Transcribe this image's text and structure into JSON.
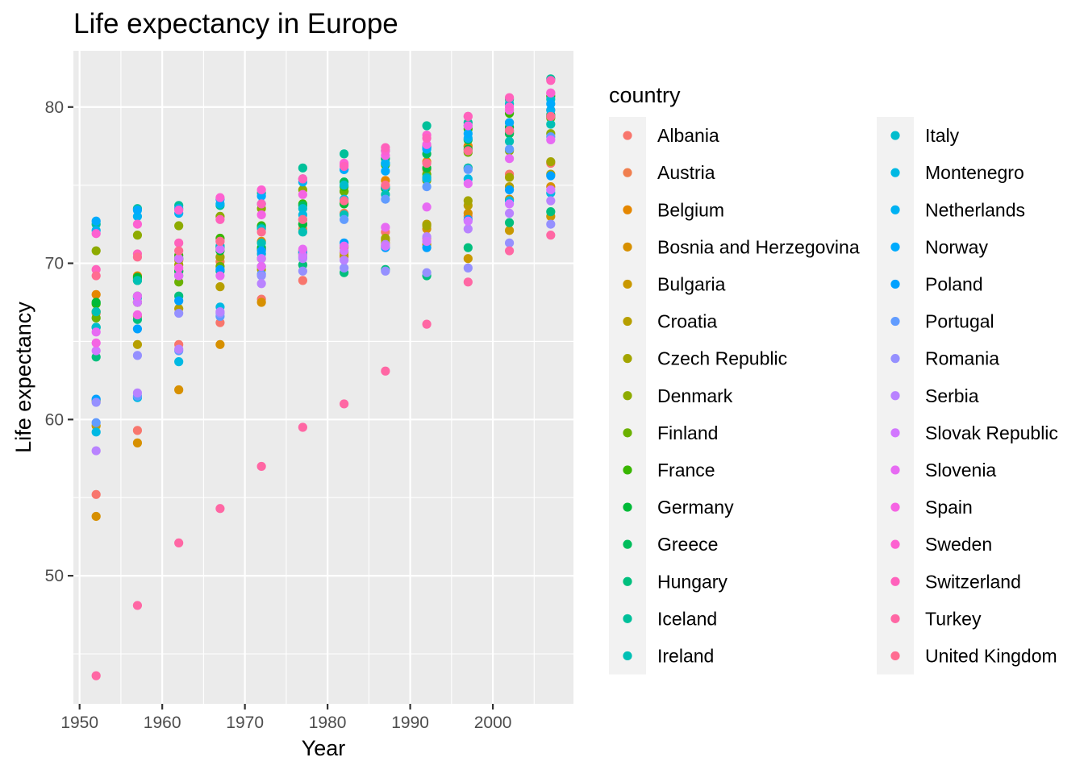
{
  "chart_data": {
    "type": "scatter",
    "title": "Life expectancy in Europe",
    "xlabel": "Year",
    "ylabel": "Life expectancy",
    "xlim": [
      1949.25,
      2009.75
    ],
    "ylim": [
      41.8,
      83.6
    ],
    "x_ticks": [
      1950,
      1960,
      1970,
      1980,
      1990,
      2000
    ],
    "y_ticks": [
      50,
      60,
      70,
      80
    ],
    "grid": true,
    "legend_title": "country",
    "legend_position": "right",
    "x": [
      1952,
      1957,
      1962,
      1967,
      1972,
      1977,
      1982,
      1987,
      1992,
      1997,
      2002,
      2007
    ],
    "series": [
      {
        "name": "Albania",
        "color": "#F8766D",
        "values": [
          55.2,
          59.3,
          64.8,
          66.2,
          67.7,
          68.9,
          70.4,
          72.0,
          71.6,
          73.0,
          75.7,
          76.4
        ]
      },
      {
        "name": "Austria",
        "color": "#F07F4F",
        "values": [
          66.8,
          67.5,
          69.5,
          70.1,
          70.6,
          72.2,
          73.2,
          74.9,
          76.0,
          77.5,
          79.0,
          79.8
        ]
      },
      {
        "name": "Belgium",
        "color": "#E58700",
        "values": [
          68.0,
          69.2,
          70.2,
          70.9,
          71.4,
          72.8,
          73.9,
          75.3,
          76.5,
          77.5,
          78.3,
          79.4
        ]
      },
      {
        "name": "Bosnia and Herzegovina",
        "color": "#D79000",
        "values": [
          53.8,
          58.5,
          61.9,
          64.8,
          67.5,
          69.9,
          70.7,
          71.1,
          72.2,
          73.2,
          74.1,
          74.9
        ]
      },
      {
        "name": "Bulgaria",
        "color": "#C99800",
        "values": [
          59.6,
          66.6,
          69.5,
          70.4,
          70.9,
          70.8,
          71.1,
          71.3,
          71.2,
          70.3,
          72.1,
          73.0
        ]
      },
      {
        "name": "Croatia",
        "color": "#B79F00",
        "values": [
          61.2,
          64.8,
          67.1,
          68.5,
          69.6,
          70.6,
          70.5,
          71.5,
          72.5,
          73.7,
          74.9,
          75.7
        ]
      },
      {
        "name": "Czech Republic",
        "color": "#A3A500",
        "values": [
          66.9,
          69.0,
          69.9,
          70.4,
          70.3,
          70.7,
          71.0,
          71.6,
          72.4,
          74.0,
          75.5,
          76.5
        ]
      },
      {
        "name": "Denmark",
        "color": "#8EAB00",
        "values": [
          70.8,
          71.8,
          72.4,
          73.0,
          73.5,
          74.7,
          74.6,
          74.8,
          75.3,
          76.1,
          77.2,
          78.3
        ]
      },
      {
        "name": "Finland",
        "color": "#6BB100",
        "values": [
          66.5,
          67.5,
          68.8,
          69.8,
          70.9,
          72.5,
          74.6,
          74.8,
          75.7,
          77.1,
          78.4,
          79.3
        ]
      },
      {
        "name": "France",
        "color": "#39B600",
        "values": [
          67.4,
          68.9,
          70.5,
          71.6,
          72.4,
          73.8,
          74.9,
          76.3,
          77.5,
          78.6,
          79.6,
          80.7
        ]
      },
      {
        "name": "Germany",
        "color": "#00BA38",
        "values": [
          67.5,
          69.1,
          70.3,
          70.8,
          71.0,
          72.5,
          73.8,
          74.8,
          76.1,
          77.3,
          78.7,
          79.4
        ]
      },
      {
        "name": "Greece",
        "color": "#00BD5C",
        "values": [
          65.9,
          67.9,
          69.5,
          71.0,
          72.3,
          73.7,
          75.2,
          76.7,
          77.0,
          77.9,
          78.3,
          79.5
        ]
      },
      {
        "name": "Hungary",
        "color": "#00BF7D",
        "values": [
          64.0,
          66.4,
          67.9,
          69.5,
          69.8,
          69.9,
          69.4,
          69.6,
          69.2,
          71.0,
          72.6,
          73.3
        ]
      },
      {
        "name": "Iceland",
        "color": "#00C09A",
        "values": [
          72.5,
          73.5,
          73.7,
          73.7,
          74.5,
          76.1,
          77.0,
          77.2,
          78.8,
          79.0,
          80.5,
          81.8
        ]
      },
      {
        "name": "Ireland",
        "color": "#00C0B5",
        "values": [
          66.9,
          68.9,
          70.3,
          71.1,
          71.3,
          72.0,
          73.1,
          74.4,
          75.5,
          76.1,
          77.8,
          78.9
        ]
      },
      {
        "name": "Italy",
        "color": "#00BDCD",
        "values": [
          65.9,
          67.8,
          69.2,
          71.1,
          72.2,
          73.5,
          75.0,
          76.4,
          77.4,
          78.8,
          80.2,
          80.5
        ]
      },
      {
        "name": "Montenegro",
        "color": "#00B9E3",
        "values": [
          59.2,
          61.4,
          63.7,
          67.2,
          70.6,
          73.1,
          74.1,
          74.9,
          75.4,
          75.4,
          74.0,
          74.5
        ]
      },
      {
        "name": "Netherlands",
        "color": "#00B2F3",
        "values": [
          72.1,
          73.0,
          73.2,
          73.8,
          73.8,
          75.2,
          76.0,
          76.4,
          77.4,
          78.0,
          78.5,
          79.8
        ]
      },
      {
        "name": "Norway",
        "color": "#00ABFD",
        "values": [
          72.7,
          73.4,
          73.5,
          74.1,
          74.3,
          75.4,
          76.0,
          75.9,
          77.3,
          78.3,
          79.0,
          80.2
        ]
      },
      {
        "name": "Poland",
        "color": "#00A1FF",
        "values": [
          61.3,
          65.8,
          67.6,
          69.6,
          70.8,
          70.7,
          71.3,
          71.0,
          71.0,
          72.8,
          74.7,
          75.6
        ]
      },
      {
        "name": "Portugal",
        "color": "#619CFF",
        "values": [
          59.8,
          61.5,
          64.4,
          66.6,
          69.3,
          70.4,
          72.8,
          74.1,
          74.9,
          76.0,
          77.3,
          78.1
        ]
      },
      {
        "name": "Romania",
        "color": "#9590FF",
        "values": [
          61.1,
          64.1,
          66.8,
          66.8,
          69.2,
          69.5,
          69.7,
          69.5,
          69.4,
          69.7,
          71.3,
          72.5
        ]
      },
      {
        "name": "Serbia",
        "color": "#B983FF",
        "values": [
          58.0,
          61.7,
          64.5,
          66.9,
          68.7,
          70.3,
          70.2,
          71.2,
          71.7,
          72.2,
          73.2,
          74.0
        ]
      },
      {
        "name": "Slovak Republic",
        "color": "#D277FF",
        "values": [
          64.4,
          67.5,
          70.3,
          70.9,
          70.3,
          70.5,
          70.8,
          71.1,
          71.4,
          72.7,
          73.8,
          74.7
        ]
      },
      {
        "name": "Slovenia",
        "color": "#E76BF3",
        "values": [
          65.6,
          67.9,
          69.2,
          69.2,
          69.8,
          70.9,
          71.1,
          72.3,
          73.6,
          75.1,
          76.7,
          77.9
        ]
      },
      {
        "name": "Spain",
        "color": "#F564E3",
        "values": [
          64.9,
          66.7,
          69.7,
          71.4,
          73.1,
          74.4,
          76.3,
          76.9,
          77.6,
          78.8,
          79.8,
          80.9
        ]
      },
      {
        "name": "Sweden",
        "color": "#FD61D1",
        "values": [
          71.9,
          72.5,
          73.4,
          74.2,
          74.7,
          75.4,
          76.4,
          77.2,
          78.2,
          79.4,
          80.0,
          80.9
        ]
      },
      {
        "name": "Switzerland",
        "color": "#FF62BC",
        "values": [
          69.6,
          70.6,
          71.3,
          72.8,
          73.8,
          75.4,
          76.2,
          77.4,
          78.0,
          79.4,
          80.6,
          81.7
        ]
      },
      {
        "name": "Turkey",
        "color": "#FF67A4",
        "values": [
          43.6,
          48.1,
          52.1,
          54.3,
          57.0,
          59.5,
          61.0,
          63.1,
          66.1,
          68.8,
          70.8,
          71.8
        ]
      },
      {
        "name": "United Kingdom",
        "color": "#FF6C91",
        "values": [
          69.2,
          70.4,
          70.8,
          71.4,
          72.0,
          72.8,
          74.0,
          75.0,
          76.4,
          77.2,
          78.5,
          79.4
        ]
      }
    ]
  }
}
